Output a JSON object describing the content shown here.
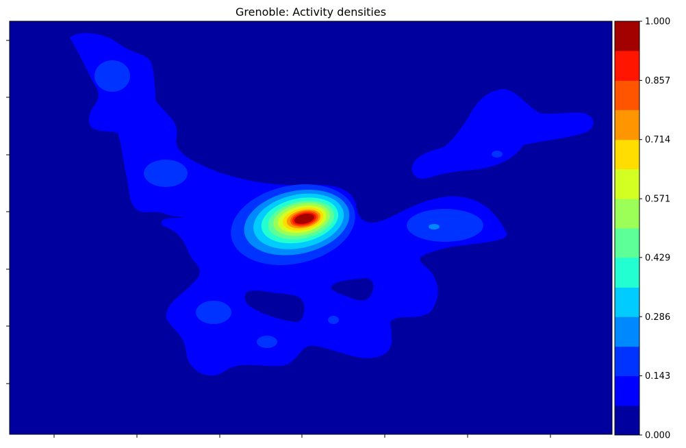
{
  "chart_data": {
    "type": "heatmap",
    "title": "Grenoble: Activity densities",
    "xlabel": "",
    "ylabel": "",
    "x_tick_labels_shown": false,
    "y_tick_labels_shown": false,
    "colorbar": {
      "range": [
        0,
        1
      ],
      "levels": [
        0.0,
        0.071,
        0.143,
        0.214,
        0.286,
        0.357,
        0.429,
        0.5,
        0.571,
        0.643,
        0.714,
        0.786,
        0.857,
        0.929,
        1.0
      ],
      "tick_values": [
        0.0,
        0.143,
        0.286,
        0.429,
        0.571,
        0.714,
        0.857,
        1.0
      ],
      "tick_labels": [
        "0.000",
        "0.143",
        "0.286",
        "0.429",
        "0.571",
        "0.714",
        "0.857",
        "1.000"
      ],
      "colors": [
        "#00009f",
        "#0000ff",
        "#0033ff",
        "#0088ff",
        "#00ccff",
        "#22ffd0",
        "#5cff98",
        "#9cff58",
        "#d4ff22",
        "#ffdd00",
        "#ff9500",
        "#ff5500",
        "#ff1500",
        "#a30000"
      ]
    },
    "peak": {
      "value": 1.0
    }
  }
}
